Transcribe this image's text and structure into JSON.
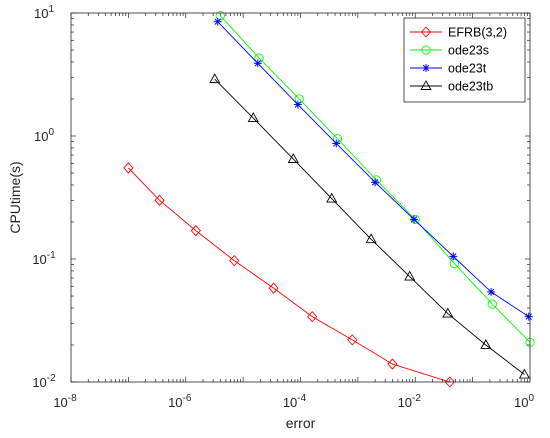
{
  "chart_data": {
    "type": "line",
    "title": "",
    "xlabel": "error",
    "ylabel": "CPUtime(s)",
    "xscale": "log",
    "yscale": "log",
    "xlim": [
      1e-08,
      1
    ],
    "ylim": [
      0.01,
      10
    ],
    "grid": false,
    "legend_position": "top-right",
    "x_tick_labels": [
      {
        "base": "10",
        "exp": "-8"
      },
      {
        "base": "10",
        "exp": "-6"
      },
      {
        "base": "10",
        "exp": "-4"
      },
      {
        "base": "10",
        "exp": "-2"
      },
      {
        "base": "10",
        "exp": "0"
      }
    ],
    "y_tick_labels": [
      {
        "base": "10",
        "exp": "-2"
      },
      {
        "base": "10",
        "exp": "-1"
      },
      {
        "base": "10",
        "exp": "0"
      },
      {
        "base": "10",
        "exp": "1"
      }
    ],
    "series": [
      {
        "name": "EFRB(3,2)",
        "color": "#ff0000",
        "marker": "diamond",
        "x": [
          1e-07,
          3.5e-07,
          1.5e-06,
          7e-06,
          3.4e-05,
          0.00016,
          0.0008,
          0.004,
          0.04
        ],
        "y": [
          0.55,
          0.3,
          0.17,
          0.097,
          0.058,
          0.034,
          0.022,
          0.014,
          0.01
        ]
      },
      {
        "name": "ode23s",
        "color": "#00ff00",
        "marker": "circle",
        "x": [
          4e-06,
          1.9e-05,
          9.5e-05,
          0.00044,
          0.0021,
          0.01,
          0.048,
          0.22,
          1
        ],
        "y": [
          9.5,
          4.3,
          2.0,
          0.95,
          0.44,
          0.21,
          0.092,
          0.043,
          0.021
        ]
      },
      {
        "name": "ode23t",
        "color": "#0000ff",
        "marker": "asterisk",
        "x": [
          3.6e-06,
          1.8e-05,
          9e-05,
          0.00042,
          0.002,
          0.0095,
          0.046,
          0.21,
          0.95
        ],
        "y": [
          8.5,
          3.9,
          1.8,
          0.87,
          0.42,
          0.21,
          0.105,
          0.054,
          0.034
        ]
      },
      {
        "name": "ode23tb",
        "color": "#000000",
        "marker": "triangle",
        "x": [
          3.2e-06,
          1.5e-05,
          7.5e-05,
          0.00035,
          0.0017,
          0.008,
          0.037,
          0.17,
          0.8
        ],
        "y": [
          2.9,
          1.4,
          0.65,
          0.31,
          0.145,
          0.072,
          0.036,
          0.02,
          0.0115
        ]
      }
    ]
  }
}
